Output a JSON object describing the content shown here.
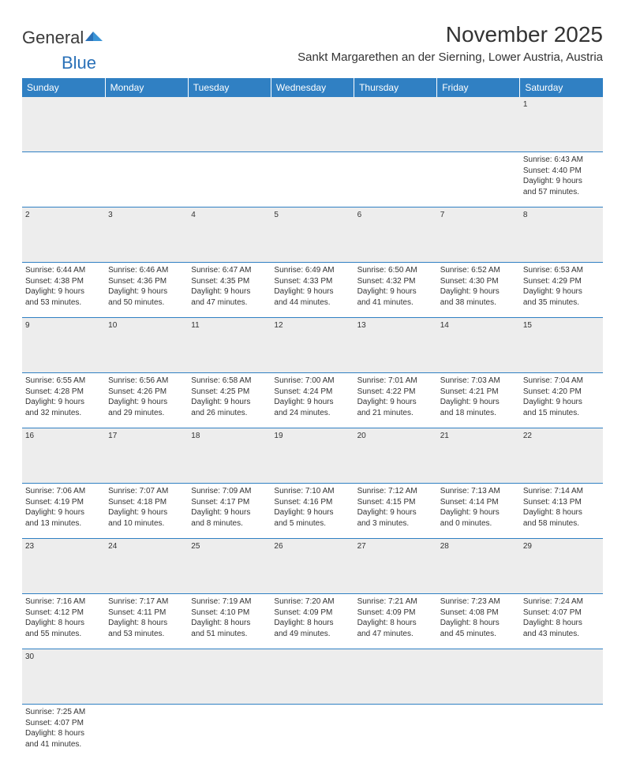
{
  "logo": {
    "text1": "General",
    "text2": "Blue"
  },
  "title": "November 2025",
  "location": "Sankt Margarethen an der Sierning, Lower Austria, Austria",
  "colors": {
    "header_bg": "#3080c3",
    "header_text": "#ffffff",
    "daynum_bg": "#ededed",
    "rule": "#3080c3",
    "logo_blue": "#2a71b8"
  },
  "weekdays": [
    "Sunday",
    "Monday",
    "Tuesday",
    "Wednesday",
    "Thursday",
    "Friday",
    "Saturday"
  ],
  "weeks": [
    {
      "nums": [
        "",
        "",
        "",
        "",
        "",
        "",
        "1"
      ],
      "info": [
        null,
        null,
        null,
        null,
        null,
        null,
        {
          "sunrise": "6:43 AM",
          "sunset": "4:40 PM",
          "daylight": "9 hours and 57 minutes."
        }
      ]
    },
    {
      "nums": [
        "2",
        "3",
        "4",
        "5",
        "6",
        "7",
        "8"
      ],
      "info": [
        {
          "sunrise": "6:44 AM",
          "sunset": "4:38 PM",
          "daylight": "9 hours and 53 minutes."
        },
        {
          "sunrise": "6:46 AM",
          "sunset": "4:36 PM",
          "daylight": "9 hours and 50 minutes."
        },
        {
          "sunrise": "6:47 AM",
          "sunset": "4:35 PM",
          "daylight": "9 hours and 47 minutes."
        },
        {
          "sunrise": "6:49 AM",
          "sunset": "4:33 PM",
          "daylight": "9 hours and 44 minutes."
        },
        {
          "sunrise": "6:50 AM",
          "sunset": "4:32 PM",
          "daylight": "9 hours and 41 minutes."
        },
        {
          "sunrise": "6:52 AM",
          "sunset": "4:30 PM",
          "daylight": "9 hours and 38 minutes."
        },
        {
          "sunrise": "6:53 AM",
          "sunset": "4:29 PM",
          "daylight": "9 hours and 35 minutes."
        }
      ]
    },
    {
      "nums": [
        "9",
        "10",
        "11",
        "12",
        "13",
        "14",
        "15"
      ],
      "info": [
        {
          "sunrise": "6:55 AM",
          "sunset": "4:28 PM",
          "daylight": "9 hours and 32 minutes."
        },
        {
          "sunrise": "6:56 AM",
          "sunset": "4:26 PM",
          "daylight": "9 hours and 29 minutes."
        },
        {
          "sunrise": "6:58 AM",
          "sunset": "4:25 PM",
          "daylight": "9 hours and 26 minutes."
        },
        {
          "sunrise": "7:00 AM",
          "sunset": "4:24 PM",
          "daylight": "9 hours and 24 minutes."
        },
        {
          "sunrise": "7:01 AM",
          "sunset": "4:22 PM",
          "daylight": "9 hours and 21 minutes."
        },
        {
          "sunrise": "7:03 AM",
          "sunset": "4:21 PM",
          "daylight": "9 hours and 18 minutes."
        },
        {
          "sunrise": "7:04 AM",
          "sunset": "4:20 PM",
          "daylight": "9 hours and 15 minutes."
        }
      ]
    },
    {
      "nums": [
        "16",
        "17",
        "18",
        "19",
        "20",
        "21",
        "22"
      ],
      "info": [
        {
          "sunrise": "7:06 AM",
          "sunset": "4:19 PM",
          "daylight": "9 hours and 13 minutes."
        },
        {
          "sunrise": "7:07 AM",
          "sunset": "4:18 PM",
          "daylight": "9 hours and 10 minutes."
        },
        {
          "sunrise": "7:09 AM",
          "sunset": "4:17 PM",
          "daylight": "9 hours and 8 minutes."
        },
        {
          "sunrise": "7:10 AM",
          "sunset": "4:16 PM",
          "daylight": "9 hours and 5 minutes."
        },
        {
          "sunrise": "7:12 AM",
          "sunset": "4:15 PM",
          "daylight": "9 hours and 3 minutes."
        },
        {
          "sunrise": "7:13 AM",
          "sunset": "4:14 PM",
          "daylight": "9 hours and 0 minutes."
        },
        {
          "sunrise": "7:14 AM",
          "sunset": "4:13 PM",
          "daylight": "8 hours and 58 minutes."
        }
      ]
    },
    {
      "nums": [
        "23",
        "24",
        "25",
        "26",
        "27",
        "28",
        "29"
      ],
      "info": [
        {
          "sunrise": "7:16 AM",
          "sunset": "4:12 PM",
          "daylight": "8 hours and 55 minutes."
        },
        {
          "sunrise": "7:17 AM",
          "sunset": "4:11 PM",
          "daylight": "8 hours and 53 minutes."
        },
        {
          "sunrise": "7:19 AM",
          "sunset": "4:10 PM",
          "daylight": "8 hours and 51 minutes."
        },
        {
          "sunrise": "7:20 AM",
          "sunset": "4:09 PM",
          "daylight": "8 hours and 49 minutes."
        },
        {
          "sunrise": "7:21 AM",
          "sunset": "4:09 PM",
          "daylight": "8 hours and 47 minutes."
        },
        {
          "sunrise": "7:23 AM",
          "sunset": "4:08 PM",
          "daylight": "8 hours and 45 minutes."
        },
        {
          "sunrise": "7:24 AM",
          "sunset": "4:07 PM",
          "daylight": "8 hours and 43 minutes."
        }
      ]
    },
    {
      "nums": [
        "30",
        "",
        "",
        "",
        "",
        "",
        ""
      ],
      "info": [
        {
          "sunrise": "7:25 AM",
          "sunset": "4:07 PM",
          "daylight": "8 hours and 41 minutes."
        },
        null,
        null,
        null,
        null,
        null,
        null
      ]
    }
  ]
}
